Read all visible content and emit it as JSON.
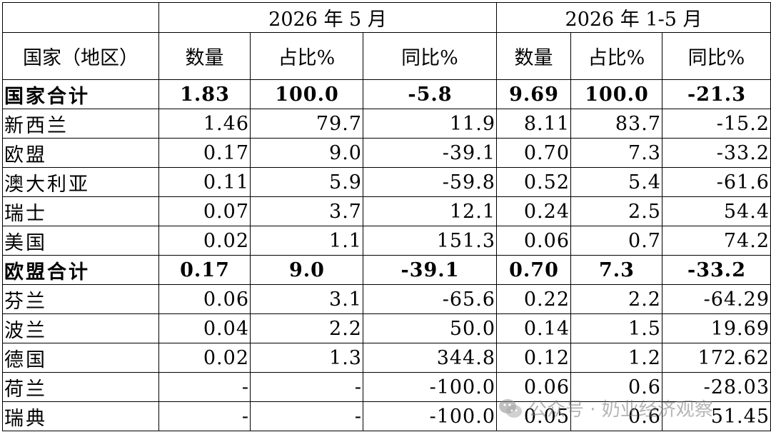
{
  "header": {
    "period_month": "2026 年 5 月",
    "period_ytd": "2026 年 1-5 月",
    "col_country": "国家（地区）",
    "col_qty": "数量",
    "col_share": "占比%",
    "col_yoy": "同比%"
  },
  "rows": [
    {
      "name": "国家合计",
      "m_qty": "1.83",
      "m_share": "100.0",
      "m_yoy": "-5.8",
      "y_qty": "9.69",
      "y_share": "100.0",
      "y_yoy": "-21.3"
    },
    {
      "name": "新西兰",
      "m_qty": "1.46",
      "m_share": "79.7",
      "m_yoy": "11.9",
      "y_qty": "8.11",
      "y_share": "83.7",
      "y_yoy": "-15.2"
    },
    {
      "name": "欧盟",
      "m_qty": "0.17",
      "m_share": "9.0",
      "m_yoy": "-39.1",
      "y_qty": "0.70",
      "y_share": "7.3",
      "y_yoy": "-33.2"
    },
    {
      "name": "澳大利亚",
      "m_qty": "0.11",
      "m_share": "5.9",
      "m_yoy": "-59.8",
      "y_qty": "0.52",
      "y_share": "5.4",
      "y_yoy": "-61.6"
    },
    {
      "name": "瑞士",
      "m_qty": "0.07",
      "m_share": "3.7",
      "m_yoy": "12.1",
      "y_qty": "0.24",
      "y_share": "2.5",
      "y_yoy": "54.4"
    },
    {
      "name": "美国",
      "m_qty": "0.02",
      "m_share": "1.1",
      "m_yoy": "151.3",
      "y_qty": "0.06",
      "y_share": "0.7",
      "y_yoy": "74.2"
    },
    {
      "name": "欧盟合计",
      "m_qty": "0.17",
      "m_share": "9.0",
      "m_yoy": "-39.1",
      "y_qty": "0.70",
      "y_share": "7.3",
      "y_yoy": "-33.2"
    },
    {
      "name": "芬兰",
      "m_qty": "0.06",
      "m_share": "3.1",
      "m_yoy": "-65.6",
      "y_qty": "0.22",
      "y_share": "2.2",
      "y_yoy": "-64.29"
    },
    {
      "name": "波兰",
      "m_qty": "0.04",
      "m_share": "2.2",
      "m_yoy": "50.0",
      "y_qty": "0.14",
      "y_share": "1.5",
      "y_yoy": "19.69"
    },
    {
      "name": "德国",
      "m_qty": "0.02",
      "m_share": "1.3",
      "m_yoy": "344.8",
      "y_qty": "0.12",
      "y_share": "1.2",
      "y_yoy": "172.62"
    },
    {
      "name": "荷兰",
      "m_qty": "-",
      "m_share": "-",
      "m_yoy": "-100.0",
      "y_qty": "0.06",
      "y_share": "0.6",
      "y_yoy": "-28.03"
    },
    {
      "name": "瑞典",
      "m_qty": "-",
      "m_share": "-",
      "m_yoy": "-100.0",
      "y_qty": "0.05",
      "y_share": "0.6",
      "y_yoy": "51.45"
    }
  ],
  "watermark": {
    "text": "公众号 · 奶业经济观察",
    "icon": "wechat-icon"
  }
}
